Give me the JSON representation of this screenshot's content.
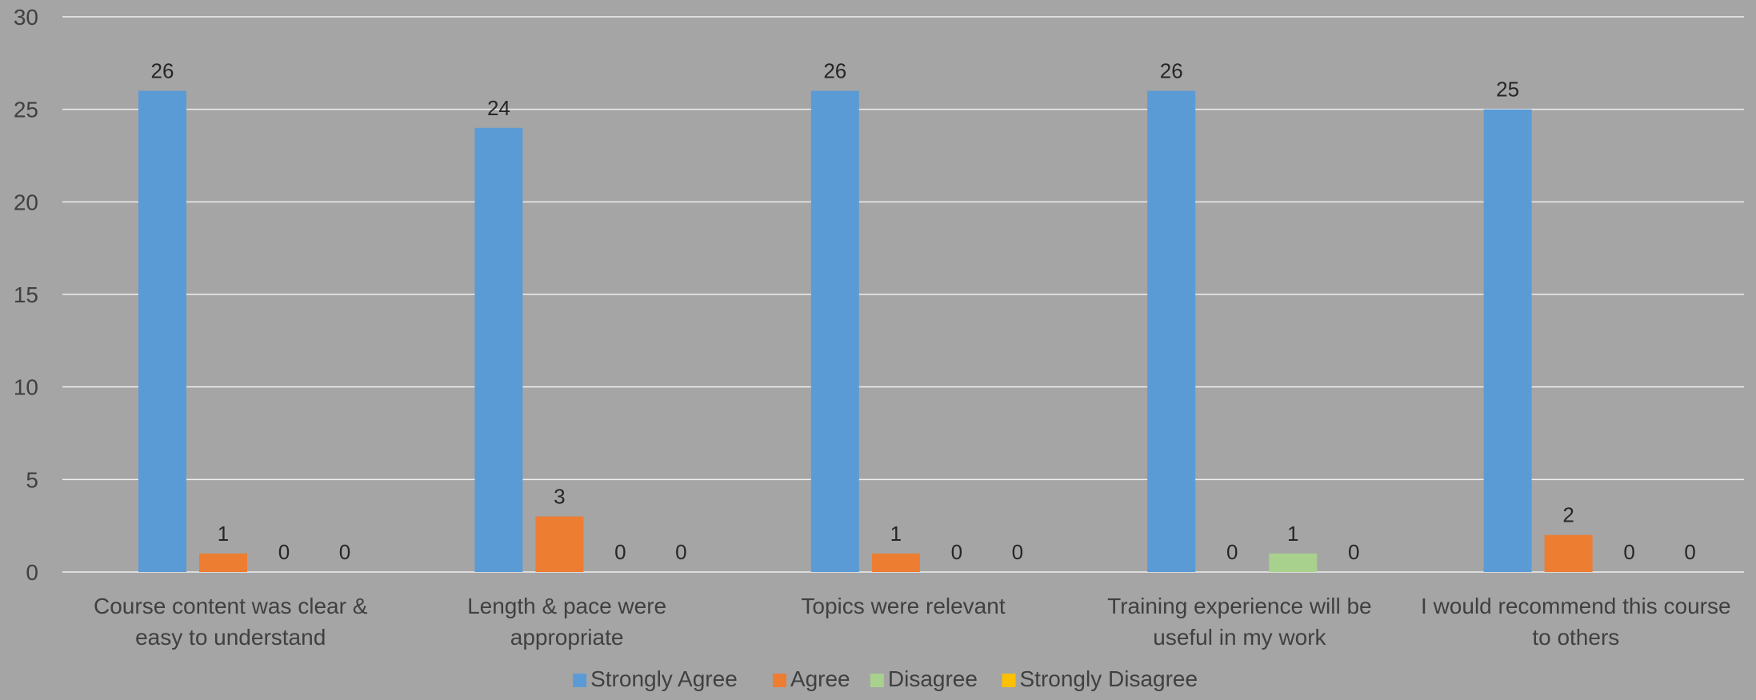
{
  "chart_data": {
    "type": "bar",
    "title": "",
    "xlabel": "",
    "ylabel": "",
    "ylim": [
      0,
      30
    ],
    "yticks": [
      0,
      5,
      10,
      15,
      20,
      25,
      30
    ],
    "grid": true,
    "legend_position": "bottom",
    "categories": [
      [
        "Course content was clear &",
        "easy to understand"
      ],
      [
        "Length & pace were",
        "appropriate"
      ],
      [
        "Topics were relevant"
      ],
      [
        "Training experience will be",
        "useful in my work"
      ],
      [
        "I would recommend this course",
        "to others"
      ]
    ],
    "series": [
      {
        "name": "Strongly Agree",
        "color": "#5b9bd5",
        "values": [
          26,
          24,
          26,
          26,
          25
        ]
      },
      {
        "name": "Agree",
        "color": "#ed7d31",
        "values": [
          1,
          3,
          1,
          0,
          2
        ]
      },
      {
        "name": "Disagree",
        "color": "#a9d18e",
        "values": [
          0,
          0,
          0,
          1,
          0
        ]
      },
      {
        "name": "Strongly Disagree",
        "color": "#ffc000",
        "values": [
          0,
          0,
          0,
          0,
          0
        ]
      }
    ]
  }
}
